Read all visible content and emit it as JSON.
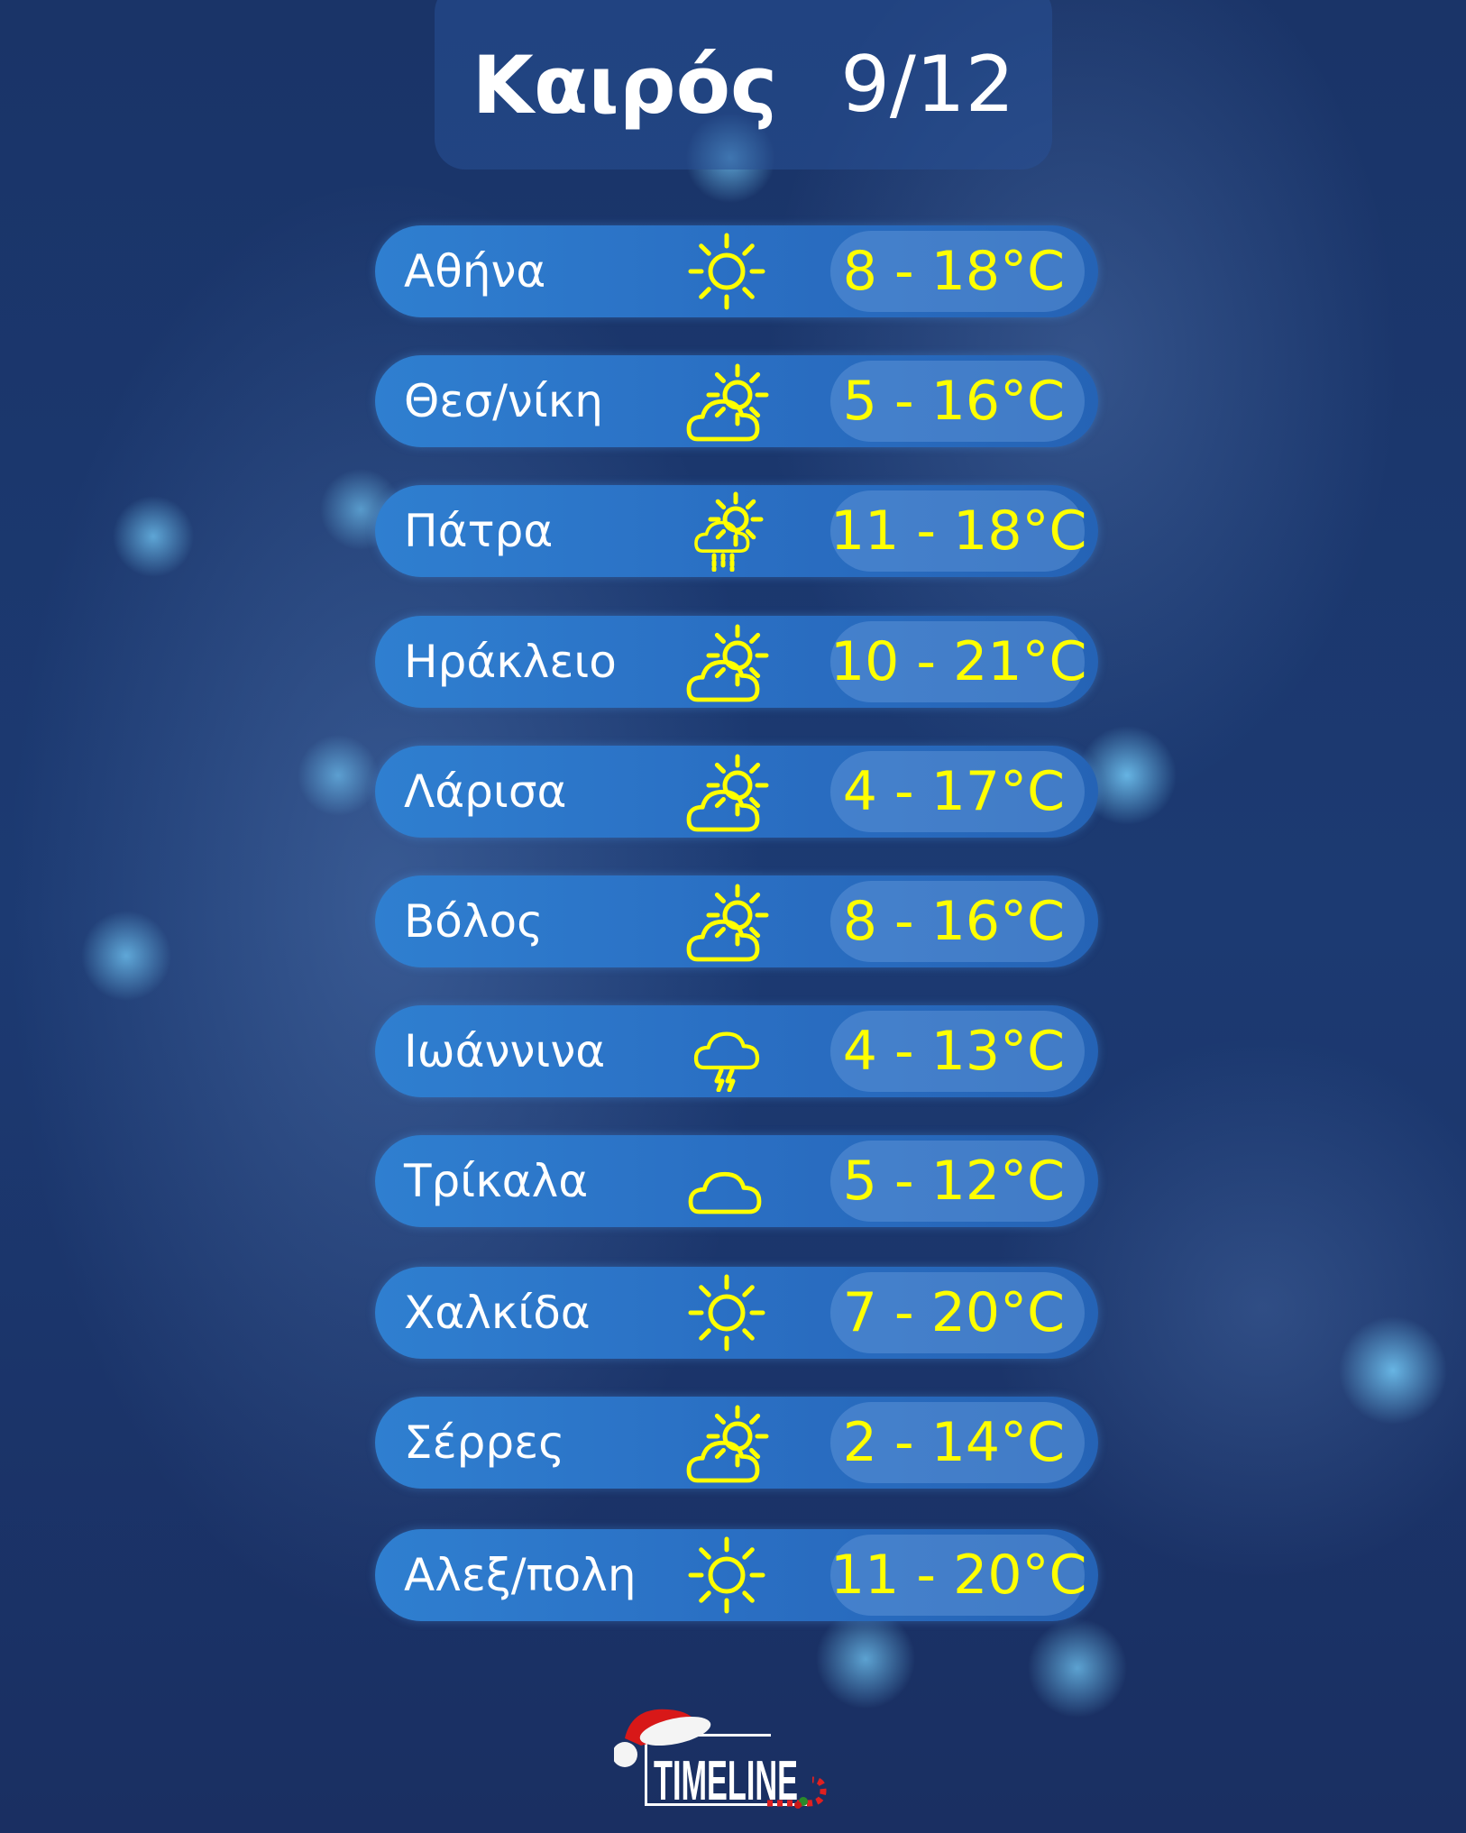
{
  "header": {
    "title": "Καιρός",
    "date": "9/12"
  },
  "colors": {
    "temperature": "#ffff00",
    "row": "#2a6fc3",
    "background": "#1c3468"
  },
  "cities": [
    {
      "name": "Αθήνα",
      "icon": "sun-icon",
      "temp": "8 - 18°C"
    },
    {
      "name": "Θεσ/νίκη",
      "icon": "partly-cloudy-icon",
      "temp": "5 - 16°C"
    },
    {
      "name": "Πάτρα",
      "icon": "partly-cloudy-rain-icon",
      "temp": "11 - 18°C"
    },
    {
      "name": "Ηράκλειο",
      "icon": "partly-cloudy-icon",
      "temp": "10 - 21°C"
    },
    {
      "name": "Λάρισα",
      "icon": "partly-cloudy-icon",
      "temp": "4 - 17°C"
    },
    {
      "name": "Βόλος",
      "icon": "partly-cloudy-icon",
      "temp": "8 - 16°C"
    },
    {
      "name": "Ιωάννινα",
      "icon": "thunderstorm-icon",
      "temp": "4 - 13°C"
    },
    {
      "name": "Τρίκαλα",
      "icon": "cloud-icon",
      "temp": "5 - 12°C"
    },
    {
      "name": "Χαλκίδα",
      "icon": "sun-icon",
      "temp": "7 - 20°C"
    },
    {
      "name": "Σέρρες",
      "icon": "partly-cloudy-icon",
      "temp": "2 - 14°C"
    },
    {
      "name": "Αλεξ/πολη",
      "icon": "sun-icon",
      "temp": "11 - 20°C"
    }
  ],
  "logo": {
    "text": "TIMELINE"
  }
}
